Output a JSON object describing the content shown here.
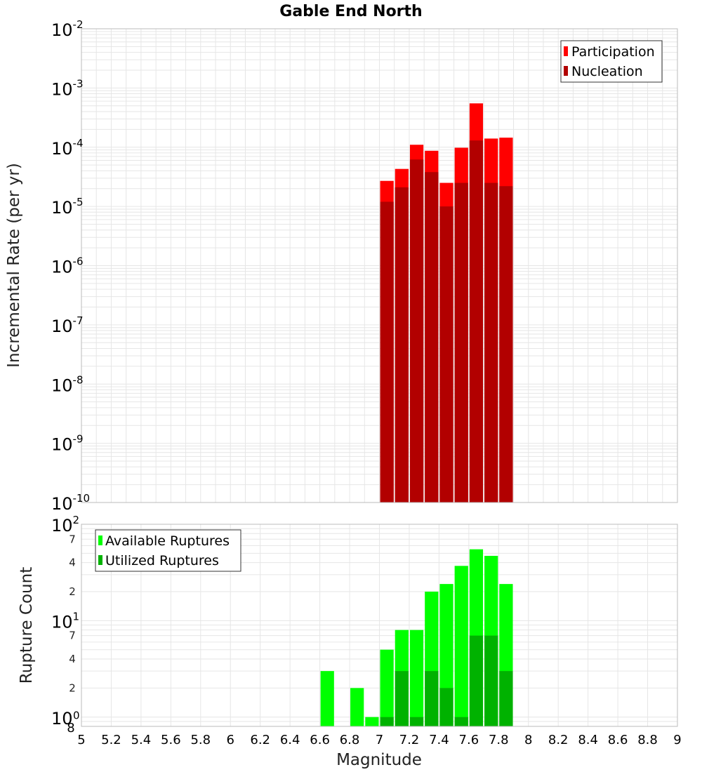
{
  "title": "Gable End North",
  "xlabel": "Magnitude",
  "colors": {
    "participation": "#ff0000",
    "nucleation": "#b20000",
    "available": "#00ff00",
    "utilized": "#00b200",
    "grid": "#e6e6e6",
    "border": "#bbbbbb"
  },
  "chart_data": [
    {
      "type": "bar",
      "title": "Gable End North",
      "ylabel": "Incremental Rate (per yr)",
      "yscale": "log",
      "ylim": [
        1e-10,
        0.01
      ],
      "xlim": [
        5,
        9
      ],
      "bin_width": 0.1,
      "grid": true,
      "legend_position": "top-right",
      "x": [
        7.05,
        7.15,
        7.25,
        7.35,
        7.45,
        7.55,
        7.65,
        7.75,
        7.85
      ],
      "series": [
        {
          "name": "Participation",
          "values": [
            2.7e-05,
            4.3e-05,
            0.00011,
            8.7e-05,
            2.5e-05,
            9.8e-05,
            0.00055,
            0.00014,
            0.000145
          ]
        },
        {
          "name": "Nucleation",
          "values": [
            1.2e-05,
            2.1e-05,
            6.2e-05,
            3.8e-05,
            1e-05,
            2.5e-05,
            0.00013,
            2.5e-05,
            2.2e-05
          ]
        }
      ],
      "ytick_exponents": [
        "-2",
        "-3",
        "-4",
        "-5",
        "-6",
        "-7",
        "-8",
        "-9",
        "-10"
      ]
    },
    {
      "type": "bar",
      "ylabel": "Rupture Count",
      "xlabel": "Magnitude",
      "yscale": "log",
      "ylim": [
        0.8,
        100
      ],
      "xlim": [
        5,
        9
      ],
      "bin_width": 0.1,
      "grid": true,
      "legend_position": "top-left",
      "x": [
        6.65,
        6.75,
        6.85,
        6.95,
        7.05,
        7.15,
        7.25,
        7.35,
        7.45,
        7.55,
        7.65,
        7.75,
        7.85
      ],
      "series": [
        {
          "name": "Available Ruptures",
          "values": [
            3,
            0,
            2,
            1,
            5,
            8,
            8,
            20,
            24,
            37,
            55,
            47,
            24
          ]
        },
        {
          "name": "Utilized Ruptures",
          "values": [
            0,
            0,
            0,
            0,
            1,
            3,
            1,
            3,
            2,
            1,
            7,
            7,
            3
          ]
        }
      ],
      "xticks": [
        "5",
        "5.2",
        "5.4",
        "5.6",
        "5.8",
        "6",
        "6.2",
        "6.4",
        "6.6",
        "6.8",
        "7",
        "7.2",
        "7.4",
        "7.6",
        "7.8",
        "8",
        "8.2",
        "8.4",
        "8.6",
        "8.8",
        "9"
      ]
    }
  ]
}
